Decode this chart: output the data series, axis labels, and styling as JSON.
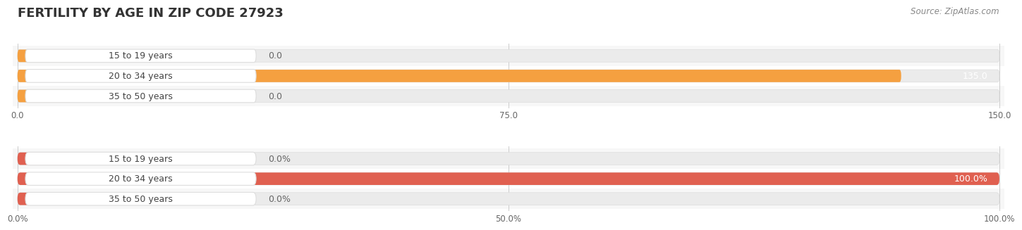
{
  "title": "FERTILITY BY AGE IN ZIP CODE 27923",
  "source": "Source: ZipAtlas.com",
  "top_chart": {
    "categories": [
      "15 to 19 years",
      "20 to 34 years",
      "35 to 50 years"
    ],
    "values": [
      0.0,
      135.0,
      0.0
    ],
    "xlim": [
      0,
      150
    ],
    "xticks": [
      0.0,
      75.0,
      150.0
    ],
    "bar_color": "#F5A040",
    "bar_bg_color": "#EBEBEB",
    "pill_bg_color": "#FFFFFF",
    "pill_border_color": "#DDDDDD",
    "label_color_inside": "#ffffff",
    "label_color_outside": "#555555",
    "value_label_color": "#666666"
  },
  "bottom_chart": {
    "categories": [
      "15 to 19 years",
      "20 to 34 years",
      "35 to 50 years"
    ],
    "values": [
      0.0,
      100.0,
      0.0
    ],
    "xlim": [
      0,
      100
    ],
    "xticks": [
      0.0,
      50.0,
      100.0
    ],
    "bar_color": "#E06050",
    "bar_bg_color": "#EBEBEB",
    "pill_bg_color": "#FFFFFF",
    "pill_border_color": "#DDDDDD",
    "label_color_inside": "#ffffff",
    "label_color_outside": "#555555",
    "value_label_color": "#666666"
  },
  "title_fontsize": 13,
  "source_fontsize": 8.5,
  "label_fontsize": 9,
  "tick_fontsize": 8.5,
  "category_fontsize": 9,
  "background_color": "#FFFFFF"
}
